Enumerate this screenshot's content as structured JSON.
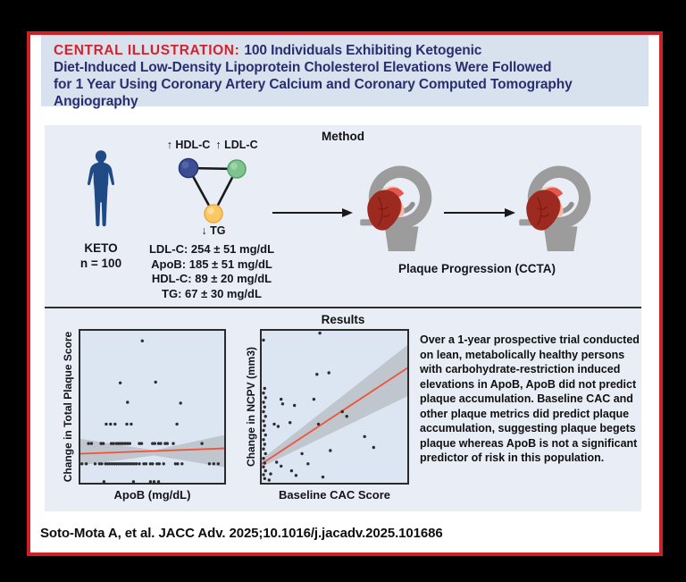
{
  "title": {
    "label": "CENTRAL ILLUSTRATION:",
    "text": "100 Individuals Exhibiting Ketogenic\nDiet-Induced Low-Density Lipoprotein Cholesterol Elevations Were Followed\nfor 1 Year Using Coronary Artery Calcium and Coronary Computed Tomography\nAngiography"
  },
  "method": {
    "heading": "Method",
    "cohort": {
      "label": "KETO",
      "n": "n = 100"
    },
    "lipid_triangle": {
      "nodes": [
        {
          "id": "hdl",
          "label": "↑ HDL-C",
          "color": "#3d4f94"
        },
        {
          "id": "ldl",
          "label": "↑ LDL-C",
          "color": "#7fc48e"
        },
        {
          "id": "tg",
          "label": "↓ TG",
          "color": "#fbc863"
        }
      ]
    },
    "labs": [
      "LDL-C: 254 ± 51 mg/dL",
      "ApoB: 185 ± 51 mg/dL",
      "HDL-C: 89 ± 20 mg/dL",
      "TG: 67 ± 30 mg/dL"
    ],
    "caption": "Plaque Progression (CCTA)"
  },
  "results": {
    "heading": "Results",
    "summary": "Over a 1-year prospective trial conducted on lean, metabolically healthy persons with carbohydrate-restriction induced elevations in ApoB, ApoB did not predict plaque accumulation. Baseline CAC and other plaque metrics did predict plaque accumulation, suggesting plaque begets plaque whereas ApoB is not a significant predictor of risk in this population."
  },
  "citation": "Soto-Mota A, et al. JACC Adv. 2025;10.1016/j.jacadv.2025.101686",
  "colors": {
    "card_border": "#ce2127",
    "title_band": "#d8e2ef",
    "title_red": "#d6232b",
    "title_navy": "#292f6e",
    "panel_bg": "#e9eef6",
    "plot_bg": "#dce6f3",
    "regression_line": "#f0533b",
    "confidence_band": "#b9bec4",
    "point": "#2d2d2d",
    "silhouette": "#204a86",
    "scanner_gray": "#9c9c9c",
    "heart_red": "#9d2a21"
  },
  "chart_data": [
    {
      "type": "scatter",
      "title": "",
      "xlabel": "ApoB (mg/dL)",
      "ylabel": "Change in Total Plaque Score",
      "axis_ticks": "none shown",
      "coords": "normalized, origin top-left of plot area",
      "points": [
        [
          0.42,
          0.065
        ],
        [
          0.27,
          0.335
        ],
        [
          0.51,
          0.33
        ],
        [
          0.32,
          0.46
        ],
        [
          0.68,
          0.465
        ],
        [
          0.175,
          0.6
        ],
        [
          0.205,
          0.6
        ],
        [
          0.235,
          0.6
        ],
        [
          0.315,
          0.6
        ],
        [
          0.345,
          0.6
        ],
        [
          0.655,
          0.6
        ],
        [
          0.055,
          0.725
        ],
        [
          0.075,
          0.725
        ],
        [
          0.14,
          0.725
        ],
        [
          0.155,
          0.725
        ],
        [
          0.21,
          0.725
        ],
        [
          0.225,
          0.725
        ],
        [
          0.245,
          0.725
        ],
        [
          0.26,
          0.725
        ],
        [
          0.275,
          0.725
        ],
        [
          0.29,
          0.725
        ],
        [
          0.305,
          0.725
        ],
        [
          0.32,
          0.725
        ],
        [
          0.335,
          0.725
        ],
        [
          0.4,
          0.725
        ],
        [
          0.415,
          0.725
        ],
        [
          0.49,
          0.725
        ],
        [
          0.505,
          0.725
        ],
        [
          0.53,
          0.725
        ],
        [
          0.545,
          0.725
        ],
        [
          0.575,
          0.725
        ],
        [
          0.59,
          0.725
        ],
        [
          0.63,
          0.725
        ],
        [
          0.825,
          0.725
        ],
        [
          0.01,
          0.855
        ],
        [
          0.04,
          0.855
        ],
        [
          0.1,
          0.855
        ],
        [
          0.13,
          0.855
        ],
        [
          0.145,
          0.855
        ],
        [
          0.17,
          0.855
        ],
        [
          0.185,
          0.855
        ],
        [
          0.2,
          0.855
        ],
        [
          0.215,
          0.855
        ],
        [
          0.23,
          0.855
        ],
        [
          0.245,
          0.855
        ],
        [
          0.26,
          0.855
        ],
        [
          0.275,
          0.855
        ],
        [
          0.29,
          0.855
        ],
        [
          0.305,
          0.855
        ],
        [
          0.32,
          0.855
        ],
        [
          0.335,
          0.855
        ],
        [
          0.35,
          0.855
        ],
        [
          0.365,
          0.855
        ],
        [
          0.38,
          0.855
        ],
        [
          0.4,
          0.855
        ],
        [
          0.43,
          0.855
        ],
        [
          0.445,
          0.855
        ],
        [
          0.475,
          0.855
        ],
        [
          0.49,
          0.855
        ],
        [
          0.52,
          0.855
        ],
        [
          0.535,
          0.855
        ],
        [
          0.565,
          0.855
        ],
        [
          0.645,
          0.855
        ],
        [
          0.66,
          0.855
        ],
        [
          0.69,
          0.855
        ],
        [
          0.875,
          0.855
        ],
        [
          0.905,
          0.855
        ],
        [
          0.935,
          0.855
        ],
        [
          0.16,
          0.97
        ],
        [
          0.36,
          0.97
        ],
        [
          0.475,
          0.97
        ],
        [
          0.5,
          0.97
        ],
        [
          0.53,
          0.97
        ]
      ],
      "regression_line": [
        [
          0,
          0.79
        ],
        [
          1,
          0.755
        ]
      ],
      "confidence_band": [
        [
          0,
          0.695
        ],
        [
          0.5,
          0.768
        ],
        [
          1,
          0.665
        ],
        [
          1,
          0.88
        ],
        [
          0.5,
          0.802
        ],
        [
          0,
          0.865
        ]
      ],
      "line_color": "#f0533b",
      "band_color": "#b9bec4",
      "point_color": "#2d2d2d",
      "interpretation": "flat regression: ApoB did not predict plaque accumulation"
    },
    {
      "type": "scatter",
      "title": "",
      "xlabel": "Baseline CAC Score",
      "ylabel": "Change in NCPV (mm3)",
      "axis_ticks": "none shown",
      "coords": "normalized, origin top-left of plot area",
      "points": [
        [
          0.012,
          0.06
        ],
        [
          0.02,
          0.37
        ],
        [
          0.012,
          0.4
        ],
        [
          0.025,
          0.43
        ],
        [
          0.012,
          0.46
        ],
        [
          0.02,
          0.49
        ],
        [
          0.012,
          0.52
        ],
        [
          0.025,
          0.55
        ],
        [
          0.012,
          0.58
        ],
        [
          0.02,
          0.61
        ],
        [
          0.012,
          0.64
        ],
        [
          0.025,
          0.67
        ],
        [
          0.012,
          0.7
        ],
        [
          0.02,
          0.73
        ],
        [
          0.012,
          0.76
        ],
        [
          0.025,
          0.79
        ],
        [
          0.012,
          0.82
        ],
        [
          0.02,
          0.85
        ],
        [
          0.012,
          0.875
        ],
        [
          0.025,
          0.9
        ],
        [
          0.012,
          0.925
        ],
        [
          0.02,
          0.95
        ],
        [
          0.39,
          0.015
        ],
        [
          0.37,
          0.28
        ],
        [
          0.45,
          0.27
        ],
        [
          0.35,
          0.44
        ],
        [
          0.13,
          0.44
        ],
        [
          0.14,
          0.47
        ],
        [
          0.22,
          0.48
        ],
        [
          0.084,
          0.6
        ],
        [
          0.11,
          0.615
        ],
        [
          0.19,
          0.59
        ],
        [
          0.54,
          0.52
        ],
        [
          0.57,
          0.55
        ],
        [
          0.38,
          0.6
        ],
        [
          0.46,
          0.77
        ],
        [
          0.69,
          0.68
        ],
        [
          0.75,
          0.75
        ],
        [
          0.27,
          0.79
        ],
        [
          0.1,
          0.845
        ],
        [
          0.13,
          0.87
        ],
        [
          0.2,
          0.9
        ],
        [
          0.06,
          0.92
        ],
        [
          0.31,
          0.855
        ],
        [
          0.41,
          0.94
        ],
        [
          0.33,
          0.99
        ],
        [
          0.23,
          0.93
        ],
        [
          0.05,
          0.96
        ]
      ],
      "regression_line": [
        [
          0,
          0.855
        ],
        [
          1,
          0.225
        ]
      ],
      "confidence_band": [
        [
          0,
          0.825
        ],
        [
          1,
          0.075
        ],
        [
          1,
          0.41
        ],
        [
          0,
          0.875
        ]
      ],
      "line_color": "#f0533b",
      "band_color": "#b9bec4",
      "point_color": "#2d2d2d",
      "interpretation": "rising regression: baseline CAC predicted plaque accumulation"
    }
  ]
}
